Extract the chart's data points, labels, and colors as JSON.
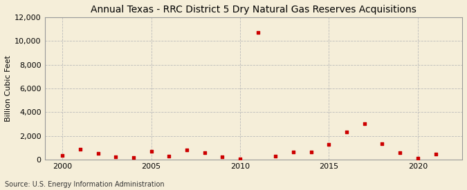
{
  "title": "Annual Texas - RRC District 5 Dry Natural Gas Reserves Acquisitions",
  "ylabel": "Billion Cubic Feet",
  "source": "Source: U.S. Energy Information Administration",
  "background_color": "#f5eed9",
  "plot_bg_color": "#f5eed9",
  "marker_color": "#cc0000",
  "years": [
    2000,
    2001,
    2002,
    2003,
    2004,
    2005,
    2006,
    2007,
    2008,
    2009,
    2010,
    2011,
    2012,
    2013,
    2014,
    2015,
    2016,
    2017,
    2018,
    2019,
    2020,
    2021
  ],
  "values": [
    350,
    900,
    550,
    250,
    200,
    700,
    300,
    850,
    600,
    250,
    50,
    10700,
    300,
    650,
    650,
    1300,
    2350,
    3050,
    1350,
    600,
    150,
    450
  ],
  "xlim": [
    1999,
    2022.5
  ],
  "ylim": [
    0,
    12000
  ],
  "yticks": [
    0,
    2000,
    4000,
    6000,
    8000,
    10000,
    12000
  ],
  "xticks": [
    2000,
    2005,
    2010,
    2015,
    2020
  ],
  "grid_color": "#bbbbbb",
  "title_fontsize": 10,
  "label_fontsize": 8,
  "tick_fontsize": 8,
  "source_fontsize": 7
}
